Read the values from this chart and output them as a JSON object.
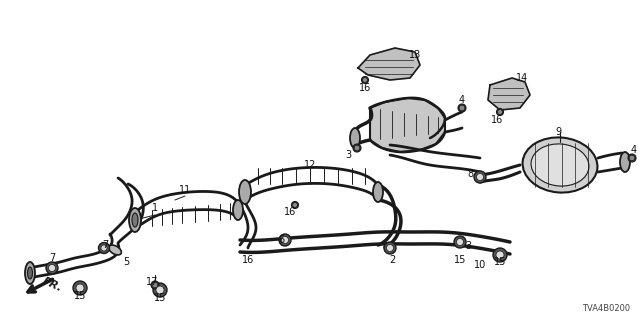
{
  "bg_color": "#ffffff",
  "line_color": "#1a1a1a",
  "label_color": "#111111",
  "diagram_code": "TVA4B0200",
  "figsize": [
    6.4,
    3.2
  ],
  "dpi": 100
}
